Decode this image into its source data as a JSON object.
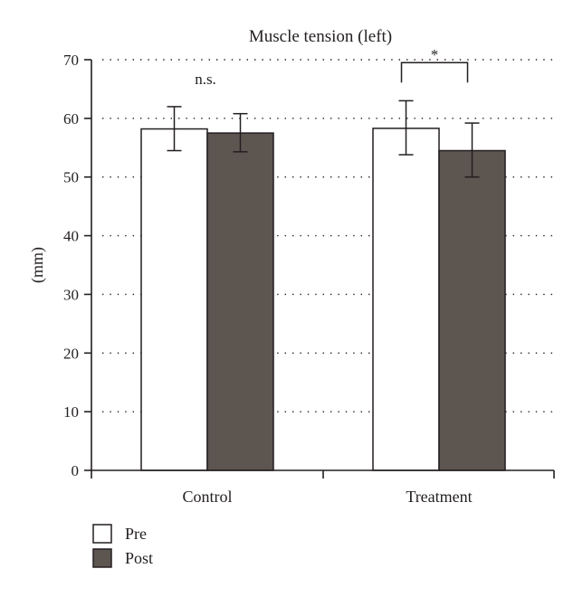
{
  "chart_data": {
    "type": "bar",
    "title": "Muscle tension (left)",
    "ylabel": "(mm)",
    "xlabel": "",
    "ylim": [
      0,
      70
    ],
    "yticks": [
      0,
      10,
      20,
      30,
      40,
      50,
      60,
      70
    ],
    "grid": true,
    "legend_position": "bottom-left",
    "categories": [
      "Control",
      "Treatment"
    ],
    "series": [
      {
        "name": "Pre",
        "color": "#ffffff",
        "values": [
          58.2,
          58.3
        ],
        "error_low": [
          54.5,
          53.8
        ],
        "error_high": [
          62.0,
          63.0
        ]
      },
      {
        "name": "Post",
        "color": "#5d5550",
        "values": [
          57.5,
          54.5
        ],
        "error_low": [
          54.3,
          50.0
        ],
        "error_high": [
          60.8,
          59.2
        ]
      }
    ],
    "annotations": [
      {
        "category": "Control",
        "text": "n.s.",
        "bracket": false
      },
      {
        "category": "Treatment",
        "text": "*",
        "bracket": true
      }
    ]
  }
}
